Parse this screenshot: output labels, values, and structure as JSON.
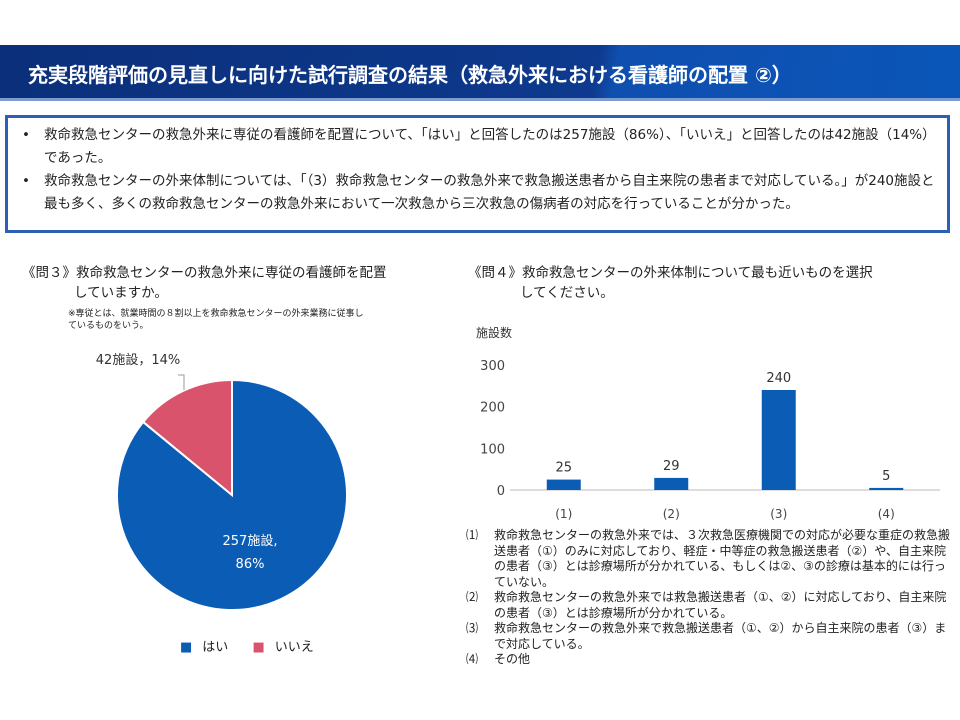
{
  "header": {
    "title": "充実段階評価の見直しに向けた試行調査の結果（救急外来における看護師の配置 ②）"
  },
  "summary": [
    "救命救急センターの救急外来に専従の看護師を配置について、「はい」と回答したのは257施設（86%）、「いいえ」と回答したのは42施設（14%）であった。",
    "救命救急センターの外来体制については、「（3）救命救急センターの救急外来で救急搬送患者から自主来院の患者まで対応している。」が240施設と最も多く、多くの救命救急センターの救急外来において一次救急から三次救急の傷病者の対応を行っていることが分かった。"
  ],
  "q3": {
    "title_line1": "《問３》救命救急センターの救急外来に専従の看護師を配置",
    "title_line2": "していますか。",
    "note": "※専従とは、就業時間の８割以上を救命救急センターの外来業務に従事しているものをいう。"
  },
  "q4": {
    "title_line1": "《問４》救命救急センターの外来体制について最も近いものを選択",
    "title_line2": "してください。",
    "definitions": [
      {
        "num": "⑴",
        "text": "救命救急センターの救急外来では、３次救急医療機関での対応が必要な重症の救急搬送患者（①）のみに対応しており、軽症・中等症の救急搬送患者（②）や、自主来院の患者（③）とは診療場所が分かれている、もしくは②、③の診療は基本的には行っていない。"
      },
      {
        "num": "⑵",
        "text": "救命救急センターの救急外来では救急搬送患者（①、②）に対応しており、自主来院の患者（③）とは診療場所が分かれている。"
      },
      {
        "num": "⑶",
        "text": "救命救急センターの救急外来で救急搬送患者（①、②）から自主来院の患者（③）まで対応している。"
      },
      {
        "num": "⑷",
        "text": "その他"
      }
    ]
  },
  "chart_data": [
    {
      "type": "pie",
      "title": "《問３》",
      "slices": [
        {
          "name": "はい",
          "value": 257,
          "percent": 86,
          "label_line1": "257施設,",
          "label_line2": "86%",
          "color": "#0b5cb5"
        },
        {
          "name": "いいえ",
          "value": 42,
          "percent": 14,
          "label": "42施設，14%",
          "color": "#d9536c"
        }
      ],
      "legend": "bottom"
    },
    {
      "type": "bar",
      "title": "《問４》",
      "ylabel": "施設数",
      "categories": [
        "(1)",
        "(2)",
        "(3)",
        "(4)"
      ],
      "values": [
        25,
        29,
        240,
        5
      ],
      "ylim": [
        0,
        300
      ],
      "yticks": [
        0,
        100,
        200,
        300
      ],
      "color": "#0b5cb5",
      "grid": false
    }
  ]
}
